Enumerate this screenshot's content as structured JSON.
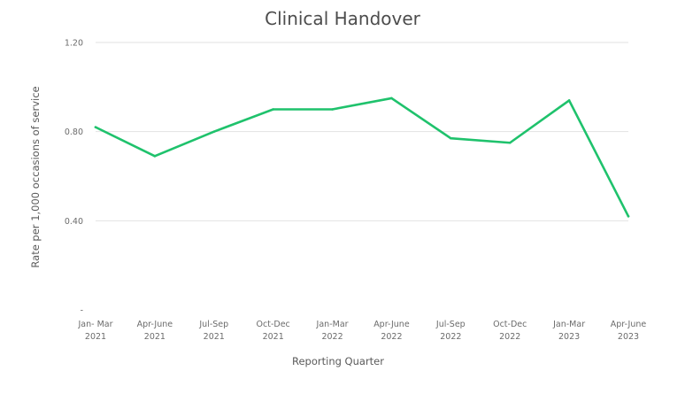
{
  "chart_data": {
    "type": "line",
    "title": "Clinical Handover",
    "xlabel": "Reporting Quarter",
    "ylabel": "Rate per 1,000 occasions of service",
    "categories": [
      [
        "Jan- Mar",
        "2021"
      ],
      [
        "Apr-June",
        "2021"
      ],
      [
        "Jul-Sep",
        "2021"
      ],
      [
        "Oct-Dec",
        "2021"
      ],
      [
        "Jan-Mar",
        "2022"
      ],
      [
        "Apr-June",
        "2022"
      ],
      [
        "Jul-Sep",
        "2022"
      ],
      [
        "Oct-Dec",
        "2022"
      ],
      [
        "Jan-Mar",
        "2023"
      ],
      [
        "Apr-June",
        "2023"
      ]
    ],
    "y_ticks": [
      {
        "value": 0,
        "label": "-"
      },
      {
        "value": 0.4,
        "label": "0.40"
      },
      {
        "value": 0.8,
        "label": "0.80"
      },
      {
        "value": 1.2,
        "label": "1.20"
      }
    ],
    "ylim": [
      0,
      1.2
    ],
    "grid": true,
    "series": [
      {
        "values": [
          0.82,
          0.69,
          0.8,
          0.9,
          0.9,
          0.95,
          0.77,
          0.75,
          0.94,
          0.42
        ],
        "color": "#1fc26c"
      }
    ]
  }
}
